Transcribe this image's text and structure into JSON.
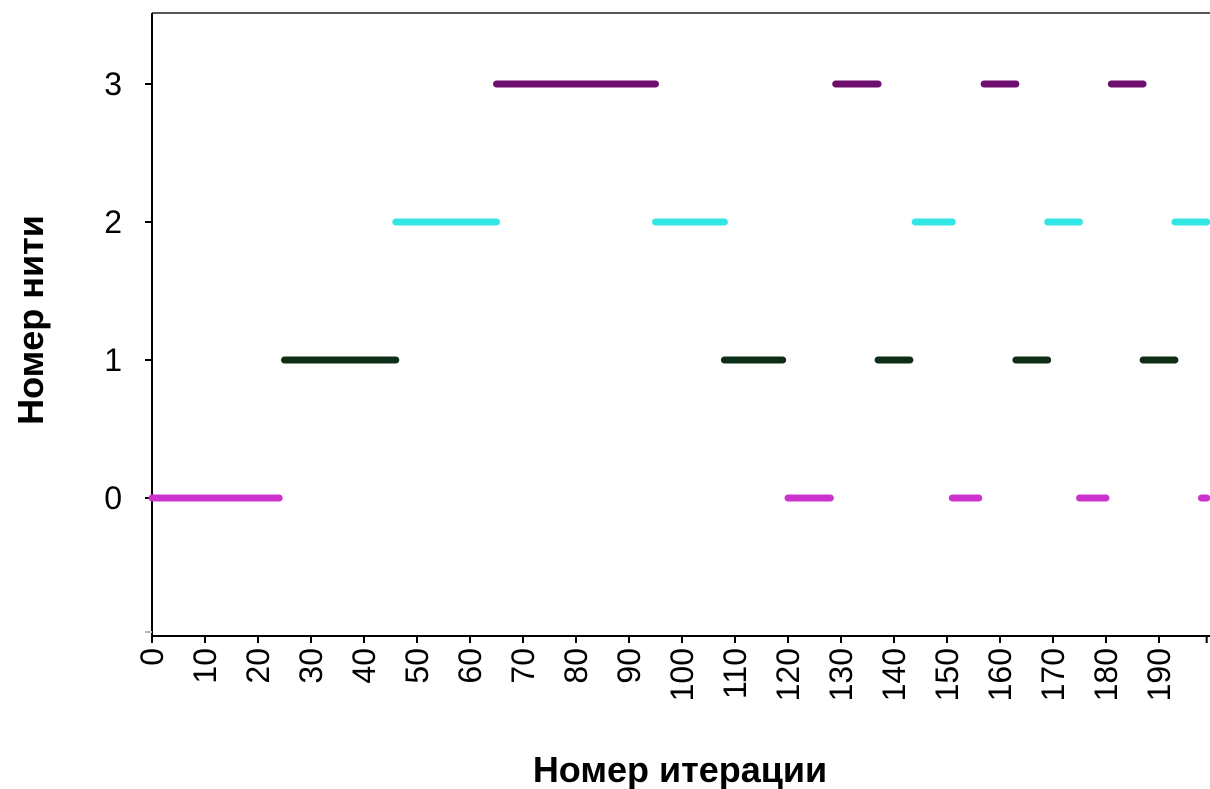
{
  "chart_data": {
    "type": "timeline",
    "xlabel": "Номер итерации",
    "ylabel": "Номер нити",
    "xlim": [
      0,
      199
    ],
    "ylim": [
      -1,
      3.5
    ],
    "x_ticks": [
      "0",
      "10",
      "20",
      "30",
      "40",
      "50",
      "60",
      "70",
      "80",
      "90",
      "100",
      "110",
      "120",
      "130",
      "140",
      "150",
      "160",
      "170",
      "180",
      "190"
    ],
    "y_ticks": [
      "0",
      "1",
      "2",
      "3"
    ],
    "grid": false,
    "legend": "none",
    "series": [
      {
        "thread": 0,
        "color": "#cc33cc",
        "segments": [
          [
            0,
            24
          ],
          [
            120,
            128
          ],
          [
            151,
            156
          ],
          [
            175,
            180
          ],
          [
            198,
            199
          ]
        ]
      },
      {
        "thread": 1,
        "color": "#0b2e14",
        "segments": [
          [
            25,
            46
          ],
          [
            108,
            119
          ],
          [
            137,
            143
          ],
          [
            163,
            169
          ],
          [
            187,
            193
          ]
        ]
      },
      {
        "thread": 2,
        "color": "#33e6e6",
        "segments": [
          [
            46,
            65
          ],
          [
            95,
            108
          ],
          [
            144,
            151
          ],
          [
            169,
            175
          ],
          [
            193,
            199
          ]
        ]
      },
      {
        "thread": 3,
        "color": "#6e0f6e",
        "segments": [
          [
            65,
            95
          ],
          [
            129,
            137
          ],
          [
            157,
            163
          ],
          [
            181,
            187
          ]
        ]
      }
    ]
  }
}
